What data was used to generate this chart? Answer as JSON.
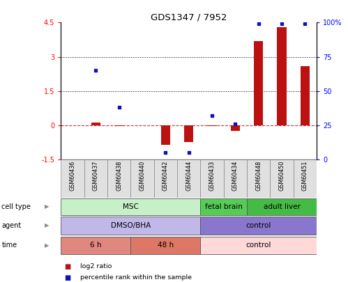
{
  "title": "GDS1347 / 7952",
  "samples": [
    "GSM60436",
    "GSM60437",
    "GSM60438",
    "GSM60440",
    "GSM60442",
    "GSM60444",
    "GSM60433",
    "GSM60434",
    "GSM60448",
    "GSM60450",
    "GSM60451"
  ],
  "log2_ratio": [
    0.0,
    0.12,
    -0.05,
    0.0,
    -0.85,
    -0.75,
    -0.05,
    -0.25,
    3.7,
    4.3,
    2.6
  ],
  "percentile_rank": [
    null,
    65,
    38,
    null,
    5,
    5,
    32,
    26,
    99,
    99,
    99
  ],
  "ylim_left": [
    -1.5,
    4.5
  ],
  "ylim_right": [
    0,
    100
  ],
  "yticks_left": [
    -1.5,
    0,
    1.5,
    3,
    4.5
  ],
  "yticks_right": [
    0,
    25,
    50,
    75,
    100
  ],
  "ytick_labels_left": [
    "-1.5",
    "0",
    "1.5",
    "3",
    "4.5"
  ],
  "ytick_labels_right": [
    "0",
    "25",
    "50",
    "75",
    "100%"
  ],
  "hlines": [
    3.0,
    1.5
  ],
  "bar_color": "#bb1111",
  "dot_color": "#1111bb",
  "zero_line_color": "#cc3333",
  "cell_type_row": {
    "label": "cell type",
    "segments": [
      {
        "text": "MSC",
        "start": 0,
        "end": 6,
        "color": "#c8f0c8"
      },
      {
        "text": "fetal brain",
        "start": 6,
        "end": 8,
        "color": "#55cc55"
      },
      {
        "text": "adult liver",
        "start": 8,
        "end": 11,
        "color": "#44bb44"
      }
    ]
  },
  "agent_row": {
    "label": "agent",
    "segments": [
      {
        "text": "DMSO/BHA",
        "start": 0,
        "end": 6,
        "color": "#c0b8e8"
      },
      {
        "text": "control",
        "start": 6,
        "end": 11,
        "color": "#8877cc"
      }
    ]
  },
  "time_row": {
    "label": "time",
    "segments": [
      {
        "text": "6 h",
        "start": 0,
        "end": 3,
        "color": "#e08880"
      },
      {
        "text": "48 h",
        "start": 3,
        "end": 6,
        "color": "#dd7766"
      },
      {
        "text": "control",
        "start": 6,
        "end": 11,
        "color": "#ffd8d8"
      }
    ]
  },
  "legend_items": [
    {
      "color": "#bb1111",
      "label": "log2 ratio"
    },
    {
      "color": "#1111bb",
      "label": "percentile rank within the sample"
    }
  ],
  "bg_color": "#ffffff",
  "bar_width": 0.4
}
